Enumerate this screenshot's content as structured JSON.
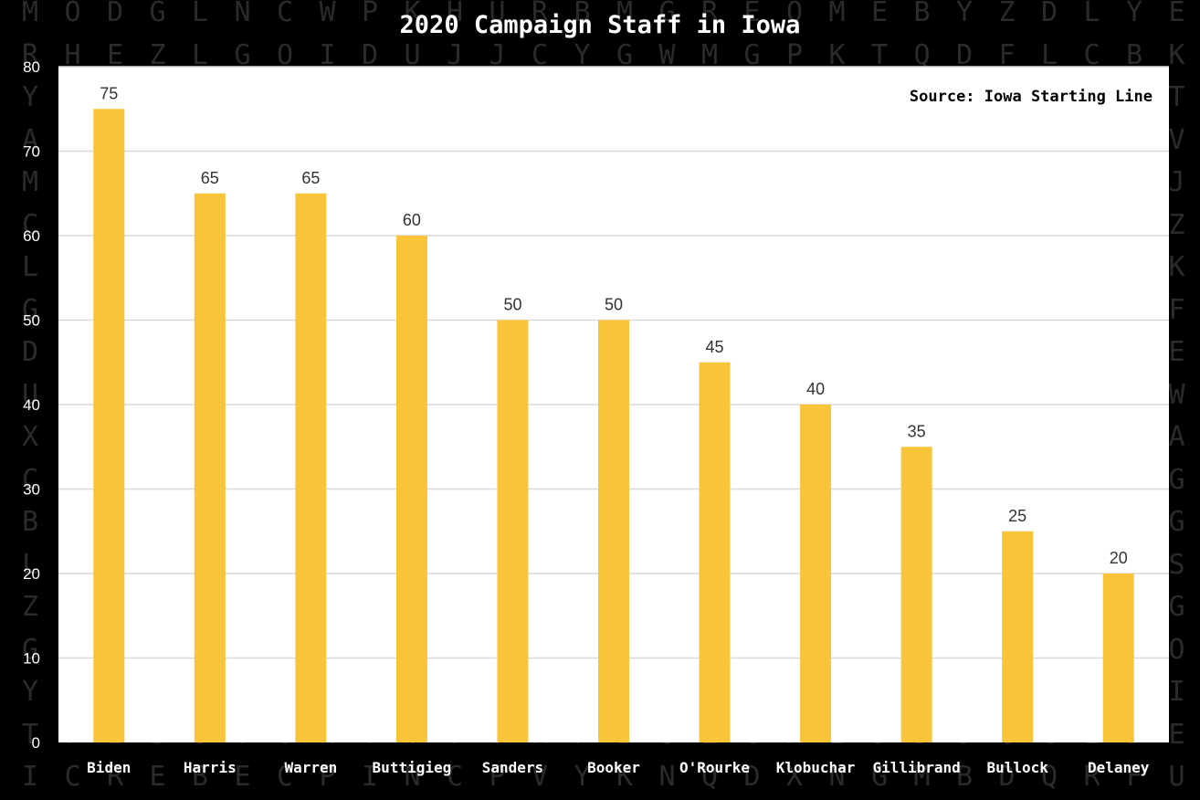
{
  "colors": {
    "background": "#000000",
    "plot_background": "#ffffff",
    "bar": "#F8C43A",
    "grid": "#d9d9d9"
  },
  "chart_data": {
    "type": "bar",
    "title": "2020 Campaign Staff in Iowa",
    "annotation": "Source: Iowa Starting Line",
    "categories": [
      "Biden",
      "Harris",
      "Warren",
      "Buttigieg",
      "Sanders",
      "Booker",
      "O'Rourke",
      "Klobuchar",
      "Gillibrand",
      "Bullock",
      "Delaney"
    ],
    "values": [
      75,
      65,
      65,
      60,
      50,
      50,
      45,
      40,
      35,
      25,
      20
    ],
    "yticks": [
      "0",
      "10",
      "20",
      "30",
      "40",
      "50",
      "60",
      "70",
      "80"
    ],
    "ylim": [
      0,
      80
    ],
    "grid": true,
    "data_labels": true
  }
}
